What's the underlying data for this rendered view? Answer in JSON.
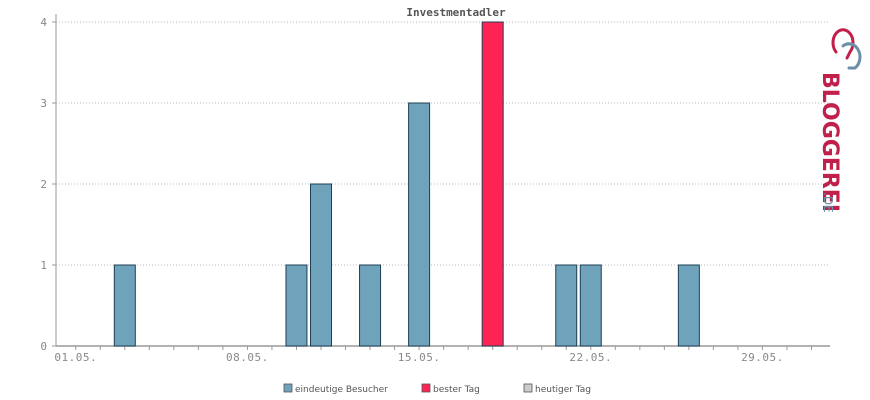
{
  "chart_data": {
    "type": "bar",
    "title": "Investmentadler",
    "ylim": [
      0,
      4
    ],
    "yticks": [
      "0",
      "1",
      "2",
      "3",
      "4"
    ],
    "grid": true,
    "day_count": 31,
    "x_tick_labels": [
      {
        "day": 1,
        "label": "01.05."
      },
      {
        "day": 8,
        "label": "08.05."
      },
      {
        "day": 15,
        "label": "15.05."
      },
      {
        "day": 22,
        "label": "22.05."
      },
      {
        "day": 29,
        "label": "29.05."
      }
    ],
    "series": [
      {
        "name": "eindeutige Besucher",
        "color": "#6fa3bb",
        "points": [
          {
            "day": 3,
            "value": 1
          },
          {
            "day": 10,
            "value": 1
          },
          {
            "day": 11,
            "value": 2
          },
          {
            "day": 13,
            "value": 1
          },
          {
            "day": 15,
            "value": 3
          },
          {
            "day": 21,
            "value": 1
          },
          {
            "day": 22,
            "value": 1
          },
          {
            "day": 26,
            "value": 1
          }
        ]
      },
      {
        "name": "bester Tag",
        "color": "#ff2255",
        "points": [
          {
            "day": 18,
            "value": 4
          }
        ]
      },
      {
        "name": "heutiger Tag",
        "color": "#cccccc",
        "points": []
      }
    ],
    "legend_position": "bottom"
  },
  "logo": {
    "text_main": "BLOGGEREI",
    "text_suffix": ".DE",
    "color_main": "#c0204a",
    "color_suffix": "#6a8fa8"
  }
}
